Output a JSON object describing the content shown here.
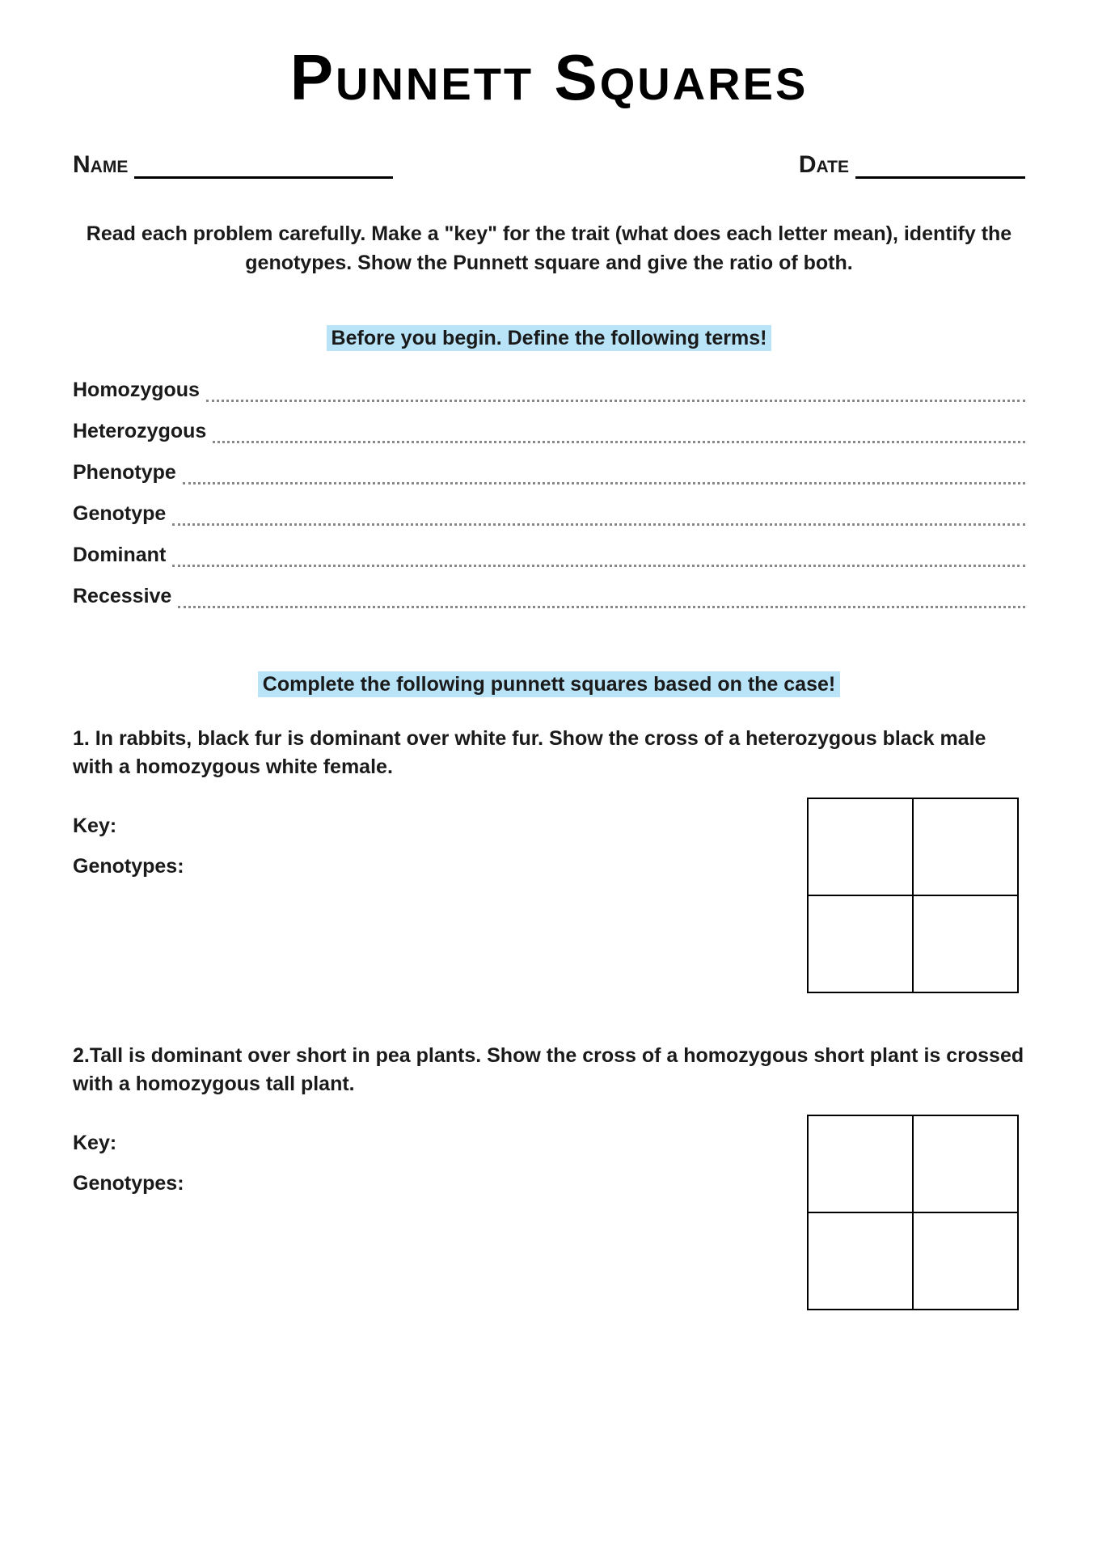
{
  "title": "Punnett Squares",
  "name_label": "Name",
  "date_label": "Date",
  "instructions": "Read each problem carefully. Make a \"key\" for the trait (what does each letter mean), identify the genotypes. Show the Punnett square and give the ratio of both.",
  "section1_heading": "Before you begin. Define the following terms!",
  "terms": [
    "Homozygous",
    "Heterozygous",
    "Phenotype",
    "Genotype",
    "Dominant",
    "Recessive"
  ],
  "section2_heading": "Complete the following punnett squares based on the case!",
  "problems": [
    {
      "text": "1. In rabbits, black fur is dominant over white fur. Show the cross of a heterozygous black male with a homozygous white female.",
      "key_label": "Key:",
      "genotypes_label": "Genotypes:"
    },
    {
      "text": "2.Tall is dominant over short in pea plants. Show the cross of a homozygous short plant is crossed with a homozygous tall plant.",
      "key_label": "Key:",
      "genotypes_label": "Genotypes:"
    }
  ],
  "colors": {
    "highlight": "#b9e3f7",
    "text": "#1a1a1a",
    "background": "#ffffff",
    "dotted": "#888888",
    "border": "#000000"
  },
  "punnett_square": {
    "rows": 2,
    "cols": 2
  }
}
